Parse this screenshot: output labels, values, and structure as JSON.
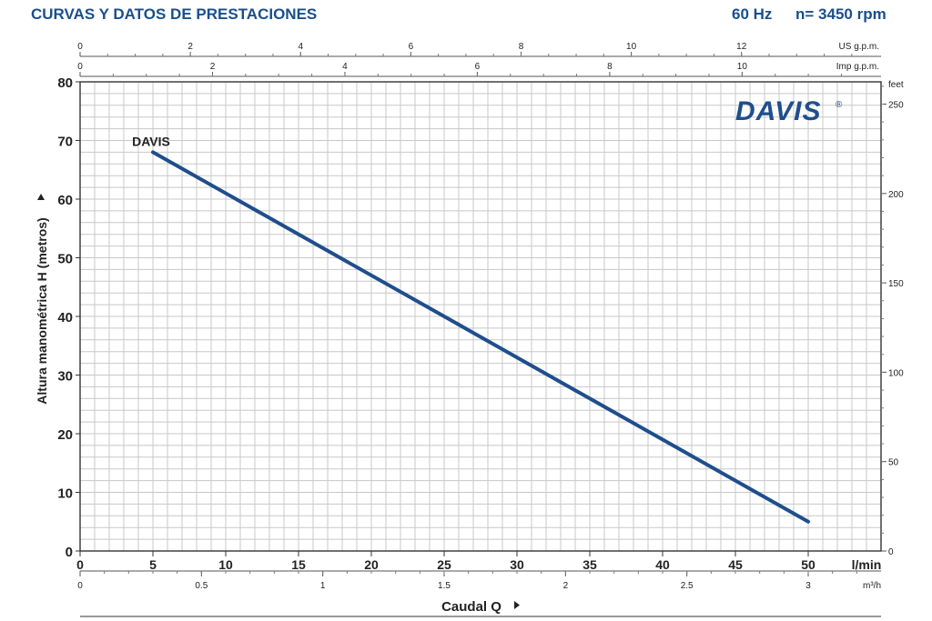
{
  "header": {
    "title": "CURVAS Y DATOS DE PRESTACIONES",
    "frequency": "60 Hz",
    "speed": "n= 3450 rpm"
  },
  "logo": {
    "text": "DAVIS",
    "mark": "®"
  },
  "colors": {
    "header_text": "#1a4f8c",
    "curve": "#1f4e8c",
    "grid": "#c8c8c8",
    "logo": "#1f4e8c"
  },
  "chart_data": {
    "type": "line",
    "xlabel": "Caudal Q",
    "ylabel": "Altura manométrica H (metros)",
    "x_unit": "l/min",
    "xlim": [
      0,
      55
    ],
    "ylim": [
      0,
      80
    ],
    "x_ticks": [
      0,
      5,
      10,
      15,
      20,
      25,
      30,
      35,
      40,
      45,
      50
    ],
    "y_ticks": [
      0,
      10,
      20,
      30,
      40,
      50,
      60,
      70,
      80
    ],
    "series": [
      {
        "name": "DAVIS",
        "x": [
          5,
          50
        ],
        "y": [
          68,
          5
        ]
      }
    ],
    "secondary_axes": {
      "us_gpm": {
        "label": "US g.p.m.",
        "ticks": [
          0,
          2,
          4,
          6,
          8,
          10,
          12
        ],
        "factor_lmin": 3.785
      },
      "imp_gpm": {
        "label": "Imp g.p.m.",
        "ticks": [
          0,
          2,
          4,
          6,
          8,
          10
        ],
        "factor_lmin": 4.546
      },
      "m3h": {
        "label": "m³/h",
        "ticks": [
          0,
          0.5,
          1,
          1.5,
          2,
          2.5,
          3
        ],
        "factor_lmin": 16.667
      },
      "feet": {
        "label": "feet",
        "ticks": [
          0,
          50,
          100,
          150,
          200,
          250
        ],
        "factor_m": 0.3048
      }
    },
    "grid": true
  }
}
